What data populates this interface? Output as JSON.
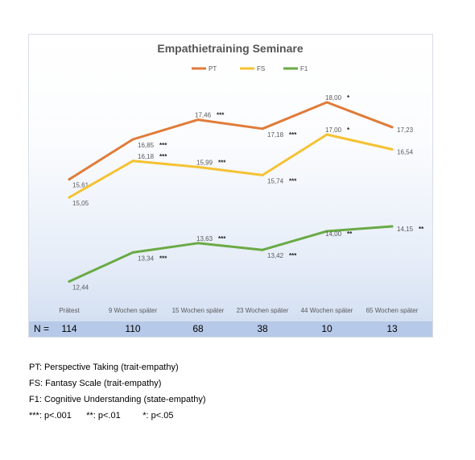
{
  "chart_data": {
    "type": "line",
    "title": "Empathietraining Seminare",
    "categories": [
      "Prätest",
      "9 Wochen später",
      "15 Wochen später",
      "23 Wochen später",
      "44 Wochen später",
      "65 Wochen später"
    ],
    "series": [
      {
        "name": "PT",
        "color": "#e07b39",
        "values": [
          15.61,
          16.85,
          17.46,
          17.18,
          18.0,
          17.23
        ],
        "labels": [
          "15,61",
          "16,85",
          "17,46",
          "17,18",
          "18,00",
          "17,23"
        ],
        "sig": [
          "",
          "***",
          "***",
          "***",
          "*",
          ""
        ]
      },
      {
        "name": "FS",
        "color": "#f5c232",
        "values": [
          15.05,
          16.18,
          15.99,
          15.74,
          17.0,
          16.54
        ],
        "labels": [
          "15,05",
          "16,18",
          "15,99",
          "15,74",
          "17,00",
          "16,54"
        ],
        "sig": [
          "",
          "***",
          "***",
          "***",
          "*",
          ""
        ]
      },
      {
        "name": "F1",
        "color": "#6aaa45",
        "values": [
          12.44,
          13.34,
          13.63,
          13.42,
          14.0,
          14.15
        ],
        "labels": [
          "12,44",
          "13,34",
          "13,63",
          "13,42",
          "14,00",
          "14,15"
        ],
        "sig": [
          "",
          "***",
          "***",
          "***",
          "**",
          "**"
        ]
      }
    ],
    "legend_position": "top",
    "grid": false
  },
  "sample_row": {
    "label": "N =",
    "values": [
      "114",
      "110",
      "68",
      "38",
      "10",
      "13"
    ]
  },
  "notes": [
    "PT: Perspective Taking (trait-empathy)",
    "FS: Fantasy Scale (trait-empathy)",
    "F1: Cognitive Understanding (state-empathy)",
    "***: p<.001      **: p<.01         *: p<.05"
  ]
}
